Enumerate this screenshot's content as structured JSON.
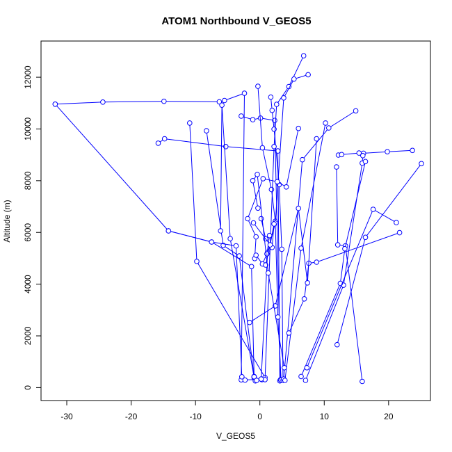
{
  "chart_data": {
    "type": "line",
    "title": "ATOM1 Northbound V_GEOS5",
    "xlabel": "V_GEOS5",
    "ylabel": "Altitude (m)",
    "xlim": [
      -34,
      26.5
    ],
    "ylim": [
      -500,
      13400
    ],
    "xticks": [
      -30,
      -20,
      -10,
      0,
      10,
      20
    ],
    "yticks": [
      0,
      2000,
      4000,
      6000,
      8000,
      10000,
      12000
    ],
    "markers": "open-circle",
    "line_color": "#0000ff",
    "series": [
      {
        "x": [
          -31.8,
          -24.4,
          -14.9,
          -6.3,
          -5.5,
          -2.4,
          -2.9,
          0.3
        ],
        "y": [
          10960,
          11040,
          11070,
          11050,
          11100,
          11380,
          300,
          310
        ]
      },
      {
        "x": [
          -15.8,
          -14.8,
          -5.3,
          2.8,
          3.1
        ],
        "y": [
          9450,
          9620,
          9320,
          9150,
          260
        ]
      },
      {
        "x": [
          -10.9,
          -9.8,
          0.8
        ],
        "y": [
          10230,
          4880,
          390
        ]
      },
      {
        "x": [
          -8.3,
          -5.7,
          -3.2,
          -0.9,
          -0.7
        ],
        "y": [
          9930,
          5500,
          5090,
          430,
          270
        ]
      },
      {
        "x": [
          -6.1,
          -5.9,
          -4.6,
          -0.9,
          -0.7
        ],
        "y": [
          6060,
          10920,
          5760,
          390,
          260
        ]
      },
      {
        "x": [
          -14.2,
          -7.5,
          -3.7,
          -2.8,
          -2.3
        ],
        "y": [
          6060,
          5630,
          5480,
          420,
          290
        ]
      },
      {
        "x": [
          -31.8,
          -14.2,
          -7.5,
          -1.3,
          -0.9,
          -0.5
        ],
        "y": [
          10960,
          6060,
          5630,
          4680,
          420,
          280
        ]
      },
      {
        "x": [
          -2.9,
          -1.1,
          0.1,
          2.3,
          3.2
        ],
        "y": [
          10500,
          10360,
          10420,
          10330,
          300
        ]
      },
      {
        "x": [
          -0.3,
          0.4,
          1.8,
          2.4,
          2.8,
          3.3
        ],
        "y": [
          11650,
          9270,
          7660,
          6430,
          2730,
          290
        ]
      },
      {
        "x": [
          1.7,
          1.9,
          2.2,
          3.0,
          3.4,
          3.6
        ],
        "y": [
          11230,
          10720,
          9990,
          7850,
          5350,
          280
        ]
      },
      {
        "x": [
          6.8,
          4.5,
          2.6,
          2.2,
          0.8
        ],
        "y": [
          12830,
          11640,
          10950,
          9320,
          310
        ]
      },
      {
        "x": [
          7.5,
          5.3,
          3.7,
          2.4,
          1.2,
          0.2
        ],
        "y": [
          12100,
          11930,
          11200,
          6360,
          5230,
          330
        ]
      },
      {
        "x": [
          14.9,
          10.7,
          6.6,
          3.7
        ],
        "y": [
          10700,
          10040,
          8810,
          330
        ]
      },
      {
        "x": [
          10.2,
          6.4,
          3.9
        ],
        "y": [
          10230,
          5390,
          280
        ]
      },
      {
        "x": [
          12.2,
          12.7,
          15.4,
          16.1,
          19.8,
          23.7
        ],
        "y": [
          8990,
          9010,
          9070,
          9060,
          9120,
          9170
        ]
      },
      {
        "x": [
          11.9,
          12.1,
          13.3,
          15.9
        ],
        "y": [
          8530,
          5520,
          5480,
          240
        ]
      },
      {
        "x": [
          16.0,
          15.9,
          13.0,
          7.1
        ],
        "y": [
          8970,
          8680,
          3960,
          280
        ]
      },
      {
        "x": [
          16.4,
          13.2,
          12.5,
          6.4
        ],
        "y": [
          8740,
          5370,
          4030,
          430
        ]
      },
      {
        "x": [
          25.1,
          16.4,
          12.0
        ],
        "y": [
          8660,
          5810,
          1660
        ]
      },
      {
        "x": [
          21.2,
          17.6,
          7.3
        ],
        "y": [
          6380,
          6890,
          770
        ]
      },
      {
        "x": [
          21.7,
          8.8,
          7.6,
          6.9,
          4.5
        ],
        "y": [
          5990,
          4850,
          4810,
          3430,
          2110
        ]
      },
      {
        "x": [
          8.8,
          7.4,
          6.0,
          2.4,
          -1.6
        ],
        "y": [
          9620,
          4050,
          6930,
          3160,
          2520
        ]
      },
      {
        "x": [
          6.0,
          4.1,
          2.7,
          0.5,
          -1.9,
          -0.6,
          -0.8
        ],
        "y": [
          10020,
          7760,
          7960,
          8080,
          6530,
          5830,
          4990
        ]
      },
      {
        "x": [
          0.2,
          0.9,
          1.5,
          1.1,
          0.4,
          -0.6
        ],
        "y": [
          6530,
          5750,
          5880,
          5170,
          4780,
          5120
        ]
      },
      {
        "x": [
          -1.0,
          1.9,
          2.2,
          1.6,
          0.9
        ],
        "y": [
          6370,
          5420,
          6330,
          5520,
          4740
        ]
      },
      {
        "x": [
          -0.3,
          -1.1,
          -0.4,
          1.3,
          3.8
        ],
        "y": [
          6940,
          8000,
          8240,
          4430,
          770
        ]
      }
    ]
  }
}
